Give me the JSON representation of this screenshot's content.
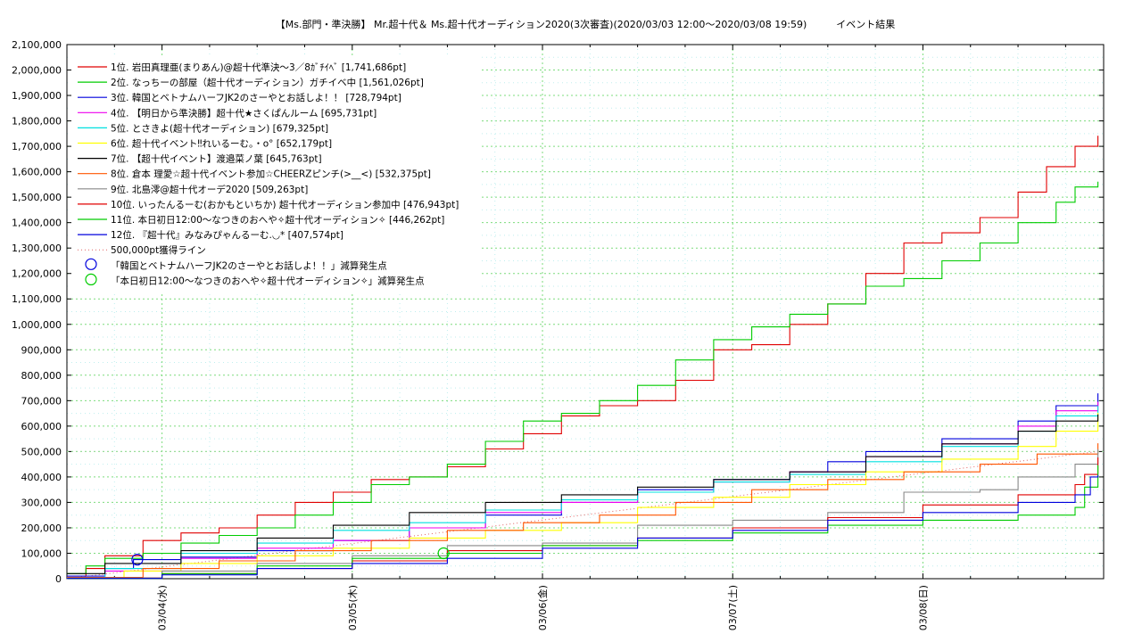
{
  "chart_data": {
    "type": "line",
    "title": "【Ms.部門・準決勝】 Mr.超十代＆ Ms.超十代オーディション2020(3次審査)(2020/03/03 12:00〜2020/03/08 19:59)　　　イベント結果",
    "xlabel": "",
    "ylabel": "",
    "x_range": [
      "2020/03/03 12:00",
      "2020/03/08 19:59"
    ],
    "ylim": [
      0,
      2100000
    ],
    "grid": true,
    "legend_position": "top-left",
    "x_tick_labels": [
      "03/04(水)",
      "03/05(木)",
      "03/06(金)",
      "03/07(土)",
      "03/08(日)"
    ],
    "x_tick_values": [
      0.5,
      1.5,
      2.5,
      3.5,
      4.5
    ],
    "y_tick_labels": [
      "0",
      "100,000",
      "200,000",
      "300,000",
      "400,000",
      "500,000",
      "600,000",
      "700,000",
      "800,000",
      "900,000",
      "1,000,000",
      "1,100,000",
      "1,200,000",
      "1,300,000",
      "1,400,000",
      "1,500,000",
      "1,600,000",
      "1,700,000",
      "1,800,000",
      "1,900,000",
      "2,000,000",
      "2,100,000"
    ],
    "x_unit_note": "x values are days elapsed since 2020/03/03 12:00",
    "series": [
      {
        "name": "1位. 岩田真理亜(まりあん)@超十代準決〜3／8ｶﾞﾁｲﾍﾞ [1,741,686pt]",
        "color": "#e00000",
        "points": [
          [
            0,
            10000
          ],
          [
            0.1,
            40000
          ],
          [
            0.2,
            90000
          ],
          [
            0.4,
            150000
          ],
          [
            0.6,
            180000
          ],
          [
            0.8,
            200000
          ],
          [
            1.0,
            250000
          ],
          [
            1.2,
            300000
          ],
          [
            1.4,
            340000
          ],
          [
            1.6,
            390000
          ],
          [
            1.8,
            400000
          ],
          [
            2.0,
            440000
          ],
          [
            2.2,
            510000
          ],
          [
            2.4,
            570000
          ],
          [
            2.6,
            640000
          ],
          [
            2.8,
            680000
          ],
          [
            3.0,
            700000
          ],
          [
            3.2,
            780000
          ],
          [
            3.4,
            900000
          ],
          [
            3.6,
            920000
          ],
          [
            3.8,
            1000000
          ],
          [
            4.0,
            1080000
          ],
          [
            4.2,
            1200000
          ],
          [
            4.4,
            1320000
          ],
          [
            4.6,
            1360000
          ],
          [
            4.8,
            1420000
          ],
          [
            5.0,
            1520000
          ],
          [
            5.15,
            1620000
          ],
          [
            5.3,
            1700000
          ],
          [
            5.42,
            1741686
          ]
        ]
      },
      {
        "name": "2位. なっちーの部屋（超十代オーディション）ガチイベ中 [1,561,026pt]",
        "color": "#00cc00",
        "points": [
          [
            0,
            20000
          ],
          [
            0.1,
            50000
          ],
          [
            0.2,
            80000
          ],
          [
            0.4,
            100000
          ],
          [
            0.6,
            140000
          ],
          [
            0.8,
            170000
          ],
          [
            1.0,
            200000
          ],
          [
            1.2,
            250000
          ],
          [
            1.4,
            300000
          ],
          [
            1.6,
            370000
          ],
          [
            1.8,
            400000
          ],
          [
            2.0,
            450000
          ],
          [
            2.2,
            540000
          ],
          [
            2.4,
            620000
          ],
          [
            2.6,
            650000
          ],
          [
            2.8,
            700000
          ],
          [
            3.0,
            760000
          ],
          [
            3.2,
            860000
          ],
          [
            3.4,
            940000
          ],
          [
            3.6,
            990000
          ],
          [
            3.8,
            1040000
          ],
          [
            4.0,
            1080000
          ],
          [
            4.2,
            1150000
          ],
          [
            4.4,
            1180000
          ],
          [
            4.6,
            1250000
          ],
          [
            4.8,
            1320000
          ],
          [
            5.0,
            1400000
          ],
          [
            5.2,
            1480000
          ],
          [
            5.3,
            1540000
          ],
          [
            5.42,
            1561026
          ]
        ]
      },
      {
        "name": "3位. 韓国とベトナムハーフJK2のさーやとお話しよ！！ [728,794pt]",
        "color": "#0000dd",
        "points": [
          [
            0,
            10000
          ],
          [
            0.2,
            40000
          ],
          [
            0.35,
            75000
          ],
          [
            0.6,
            85000
          ],
          [
            1.0,
            110000
          ],
          [
            1.4,
            150000
          ],
          [
            1.8,
            200000
          ],
          [
            2.2,
            250000
          ],
          [
            2.6,
            300000
          ],
          [
            3.0,
            350000
          ],
          [
            3.4,
            390000
          ],
          [
            3.8,
            420000
          ],
          [
            4.0,
            460000
          ],
          [
            4.2,
            500000
          ],
          [
            4.6,
            550000
          ],
          [
            5.0,
            620000
          ],
          [
            5.2,
            680000
          ],
          [
            5.42,
            728794
          ]
        ]
      },
      {
        "name": "4位. 【明日から準決勝】超十代★さくぱんルーム [695,731pt]",
        "color": "#ee00ee",
        "points": [
          [
            0,
            5000
          ],
          [
            0.2,
            30000
          ],
          [
            0.6,
            80000
          ],
          [
            1.0,
            120000
          ],
          [
            1.4,
            150000
          ],
          [
            1.8,
            200000
          ],
          [
            2.2,
            260000
          ],
          [
            2.6,
            300000
          ],
          [
            3.0,
            340000
          ],
          [
            3.4,
            380000
          ],
          [
            3.8,
            420000
          ],
          [
            4.2,
            480000
          ],
          [
            4.6,
            530000
          ],
          [
            5.0,
            600000
          ],
          [
            5.2,
            660000
          ],
          [
            5.42,
            695731
          ]
        ]
      },
      {
        "name": "5位. とさきよ(超十代オーディション) [679,325pt]",
        "color": "#00e0e0",
        "points": [
          [
            0,
            5000
          ],
          [
            0.2,
            40000
          ],
          [
            0.6,
            100000
          ],
          [
            1.0,
            140000
          ],
          [
            1.4,
            190000
          ],
          [
            1.8,
            220000
          ],
          [
            2.2,
            270000
          ],
          [
            2.6,
            310000
          ],
          [
            3.0,
            340000
          ],
          [
            3.4,
            380000
          ],
          [
            3.8,
            410000
          ],
          [
            4.2,
            460000
          ],
          [
            4.6,
            520000
          ],
          [
            5.0,
            580000
          ],
          [
            5.2,
            640000
          ],
          [
            5.42,
            679325
          ]
        ]
      },
      {
        "name": "6位. 超十代イベント‼れいるーむ。・o°  [652,179pt]",
        "color": "#ffff00",
        "points": [
          [
            0,
            5000
          ],
          [
            0.3,
            30000
          ],
          [
            0.6,
            60000
          ],
          [
            1.0,
            90000
          ],
          [
            1.4,
            120000
          ],
          [
            1.8,
            160000
          ],
          [
            2.2,
            190000
          ],
          [
            2.6,
            220000
          ],
          [
            3.0,
            280000
          ],
          [
            3.4,
            320000
          ],
          [
            3.8,
            370000
          ],
          [
            4.2,
            420000
          ],
          [
            4.6,
            470000
          ],
          [
            5.0,
            520000
          ],
          [
            5.2,
            580000
          ],
          [
            5.42,
            652179
          ]
        ]
      },
      {
        "name": "7位. 【超十代イベント】渡邉菜ノ葉 [645,763pt]",
        "color": "#000000",
        "points": [
          [
            0,
            20000
          ],
          [
            0.2,
            60000
          ],
          [
            0.6,
            110000
          ],
          [
            1.0,
            160000
          ],
          [
            1.4,
            210000
          ],
          [
            1.8,
            260000
          ],
          [
            2.2,
            300000
          ],
          [
            2.6,
            330000
          ],
          [
            3.0,
            360000
          ],
          [
            3.4,
            390000
          ],
          [
            3.8,
            420000
          ],
          [
            4.2,
            480000
          ],
          [
            4.6,
            530000
          ],
          [
            5.0,
            580000
          ],
          [
            5.2,
            620000
          ],
          [
            5.42,
            645763
          ]
        ]
      },
      {
        "name": "8位. 倉本 理愛☆超十代イベント参加☆CHEERZピンチ(>__<) [532,375pt]",
        "color": "#ff5500",
        "points": [
          [
            0,
            5000
          ],
          [
            0.4,
            40000
          ],
          [
            0.8,
            70000
          ],
          [
            1.2,
            110000
          ],
          [
            1.6,
            150000
          ],
          [
            2.0,
            190000
          ],
          [
            2.4,
            220000
          ],
          [
            2.8,
            250000
          ],
          [
            3.2,
            300000
          ],
          [
            3.6,
            350000
          ],
          [
            4.0,
            390000
          ],
          [
            4.4,
            420000
          ],
          [
            4.8,
            450000
          ],
          [
            5.1,
            490000
          ],
          [
            5.42,
            532375
          ]
        ]
      },
      {
        "name": "9位. 北島澪@超十代オーデ2020 [509,263pt]",
        "color": "#888888",
        "points": [
          [
            0,
            3000
          ],
          [
            0.5,
            30000
          ],
          [
            1.0,
            60000
          ],
          [
            1.5,
            90000
          ],
          [
            2.0,
            130000
          ],
          [
            2.5,
            140000
          ],
          [
            3.0,
            210000
          ],
          [
            3.5,
            230000
          ],
          [
            4.0,
            260000
          ],
          [
            4.4,
            340000
          ],
          [
            4.8,
            350000
          ],
          [
            5.0,
            400000
          ],
          [
            5.3,
            450000
          ],
          [
            5.42,
            509263
          ]
        ]
      },
      {
        "name": "10位. いったんるーむ(おかもといちか) 超十代オーディション参加中 [476,943pt]",
        "color": "#e00000",
        "points": [
          [
            0,
            2000
          ],
          [
            0.5,
            20000
          ],
          [
            1.0,
            40000
          ],
          [
            1.5,
            70000
          ],
          [
            2.0,
            110000
          ],
          [
            2.5,
            130000
          ],
          [
            3.0,
            160000
          ],
          [
            3.5,
            200000
          ],
          [
            4.0,
            240000
          ],
          [
            4.5,
            290000
          ],
          [
            5.0,
            330000
          ],
          [
            5.3,
            370000
          ],
          [
            5.35,
            410000
          ],
          [
            5.42,
            476943
          ]
        ]
      },
      {
        "name": "11位. 本日初日12:00〜なつきのおへや✧超十代オーディション✧ [446,262pt]",
        "color": "#00cc00",
        "points": [
          [
            0,
            1000
          ],
          [
            0.5,
            20000
          ],
          [
            1.0,
            50000
          ],
          [
            1.5,
            80000
          ],
          [
            2.0,
            100000
          ],
          [
            2.5,
            130000
          ],
          [
            3.0,
            150000
          ],
          [
            3.5,
            180000
          ],
          [
            4.0,
            210000
          ],
          [
            4.5,
            230000
          ],
          [
            5.0,
            250000
          ],
          [
            5.3,
            280000
          ],
          [
            5.35,
            360000
          ],
          [
            5.42,
            446262
          ]
        ]
      },
      {
        "name": "12位. 『超十代』みなみぴゃんるーむ.◡* [407,574pt]",
        "color": "#0000dd",
        "points": [
          [
            0,
            1000
          ],
          [
            0.5,
            15000
          ],
          [
            1.0,
            40000
          ],
          [
            1.5,
            60000
          ],
          [
            2.0,
            80000
          ],
          [
            2.5,
            120000
          ],
          [
            3.0,
            160000
          ],
          [
            3.5,
            190000
          ],
          [
            4.0,
            230000
          ],
          [
            4.5,
            260000
          ],
          [
            5.0,
            300000
          ],
          [
            5.3,
            330000
          ],
          [
            5.38,
            400000
          ],
          [
            5.42,
            407574
          ]
        ]
      }
    ],
    "reference_line": {
      "name": "500,000pt獲得ライン",
      "color": "#e06060",
      "value": 500000
    },
    "markers": [
      {
        "name": "「韓国とベトナムハーフJK2のさーやとお話しよ！！」減算発生点",
        "color": "#0000dd",
        "x": 0.37,
        "y": 75000
      },
      {
        "name": "「本日初日12:00〜なつきのおへや✧超十代オーディション✧」減算発生点",
        "color": "#00cc00",
        "x": 1.98,
        "y": 100000
      }
    ]
  }
}
